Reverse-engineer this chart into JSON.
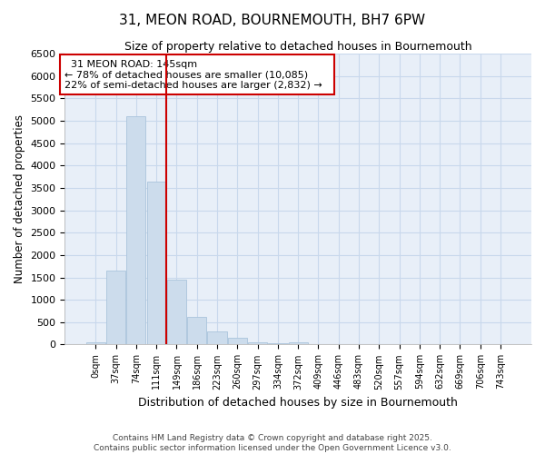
{
  "title_line1": "31, MEON ROAD, BOURNEMOUTH, BH7 6PW",
  "title_line2": "Size of property relative to detached houses in Bournemouth",
  "xlabel": "Distribution of detached houses by size in Bournemouth",
  "ylabel": "Number of detached properties",
  "footer_line1": "Contains HM Land Registry data © Crown copyright and database right 2025.",
  "footer_line2": "Contains public sector information licensed under the Open Government Licence v3.0.",
  "bar_color": "#ccdcec",
  "bar_edge_color": "#aac4dc",
  "grid_color": "#c8d8ec",
  "annotation_box_color": "#cc0000",
  "vline_color": "#cc0000",
  "categories": [
    "0sqm",
    "37sqm",
    "74sqm",
    "111sqm",
    "149sqm",
    "186sqm",
    "223sqm",
    "260sqm",
    "297sqm",
    "334sqm",
    "372sqm",
    "409sqm",
    "446sqm",
    "483sqm",
    "520sqm",
    "557sqm",
    "594sqm",
    "632sqm",
    "669sqm",
    "706sqm",
    "743sqm"
  ],
  "values": [
    50,
    1650,
    5100,
    3650,
    1450,
    620,
    300,
    150,
    50,
    30,
    50,
    5,
    5,
    3,
    2,
    1,
    1,
    0,
    0,
    0,
    0
  ],
  "property_label": "31 MEON ROAD: 145sqm",
  "annotation_line2": "← 78% of detached houses are smaller (10,085)",
  "annotation_line3": "22% of semi-detached houses are larger (2,832) →",
  "vline_x_index": 4.0,
  "ylim": [
    0,
    6500
  ],
  "yticks": [
    0,
    500,
    1000,
    1500,
    2000,
    2500,
    3000,
    3500,
    4000,
    4500,
    5000,
    5500,
    6000,
    6500
  ],
  "figsize": [
    6.0,
    5.0
  ],
  "dpi": 100
}
